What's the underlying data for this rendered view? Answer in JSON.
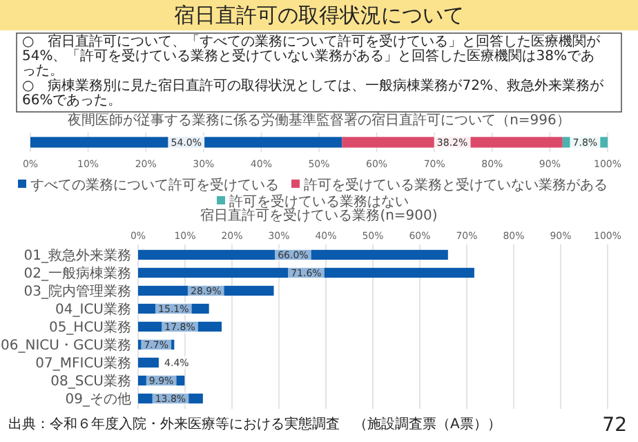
{
  "chart_data": [
    {
      "type": "other",
      "title": "宿日直許可の取得状況について",
      "annotations": [
        "○　宿日直許可について、「すべての業務について許可を受けている」と回答した医療機関が54%、「許可を受けている業務と受けていない業務がある」と回答した医療機関は38%であった。",
        "○　病棟業務別に見た宿日直許可の取得状況としては、一般病棟業務が72%、救急外来業務が66%であった。"
      ]
    },
    {
      "type": "bar",
      "orientation": "horizontal",
      "stacked": true,
      "title": "夜間医師が従事する業務に係る労働基準監督署の宿日直許可について（n=996）",
      "categories": [
        null
      ],
      "series": [
        {
          "name": "すべての業務について許可を受けている",
          "color": "#0a5aad",
          "values": [
            54.0
          ],
          "value_labels": [
            "54.0%"
          ]
        },
        {
          "name": "許可を受けている業務と受けていない業務がある",
          "color": "#dc4a6a",
          "values": [
            38.2
          ],
          "value_labels": [
            "38.2%"
          ]
        },
        {
          "name": "許可を受けている業務はない",
          "color": "#4ab3b0",
          "values": [
            7.8
          ],
          "value_labels": [
            "7.8%"
          ]
        }
      ],
      "xlim": [
        0,
        100
      ],
      "xticks": [
        {
          "value": 0,
          "label": "0%"
        },
        {
          "value": 10,
          "label": "10%"
        },
        {
          "value": 20,
          "label": "20%"
        },
        {
          "value": 30,
          "label": "30%"
        },
        {
          "value": 40,
          "label": "40%"
        },
        {
          "value": 50,
          "label": "50%"
        },
        {
          "value": 60,
          "label": "60%"
        },
        {
          "value": 70,
          "label": "70%"
        },
        {
          "value": 80,
          "label": "80%"
        },
        {
          "value": 90,
          "label": "90%"
        },
        {
          "value": 100,
          "label": "100%"
        }
      ],
      "grid": "x",
      "legend": "bottom"
    },
    {
      "type": "bar",
      "orientation": "horizontal",
      "title": "宿日直許可を受けている業務(n=900)",
      "categories": [
        "01_救急外来業務",
        "02_一般病棟業務",
        "03_院内管理業務",
        "04_ICU業務",
        "05_HCU業務",
        "06_NICU・GCU業務",
        "07_MFICU業務",
        "08_SCU業務",
        "09_その他"
      ],
      "values": [
        66.0,
        71.6,
        28.9,
        15.1,
        17.8,
        7.7,
        4.4,
        9.9,
        13.8
      ],
      "value_labels": [
        "66.0%",
        "71.6%",
        "28.9%",
        "15.1%",
        "17.8%",
        "7.7%",
        "4.4%",
        "9.9%",
        "13.8%"
      ],
      "color": "#0a5aad",
      "xlim": [
        0,
        100
      ],
      "xticks": [
        {
          "value": 0,
          "label": "0%"
        },
        {
          "value": 10,
          "label": "10%"
        },
        {
          "value": 20,
          "label": "20%"
        },
        {
          "value": 30,
          "label": "30%"
        },
        {
          "value": 40,
          "label": "40%"
        },
        {
          "value": 50,
          "label": "50%"
        },
        {
          "value": 60,
          "label": "60%"
        },
        {
          "value": 70,
          "label": "70%"
        },
        {
          "value": 80,
          "label": "80%"
        },
        {
          "value": 90,
          "label": "90%"
        },
        {
          "value": 100,
          "label": "100%"
        }
      ],
      "grid": "x",
      "annotations": [
        "出典：令和６年度入院・外来医療等における実態調査　（施設調査票（A票））",
        "72"
      ]
    }
  ]
}
